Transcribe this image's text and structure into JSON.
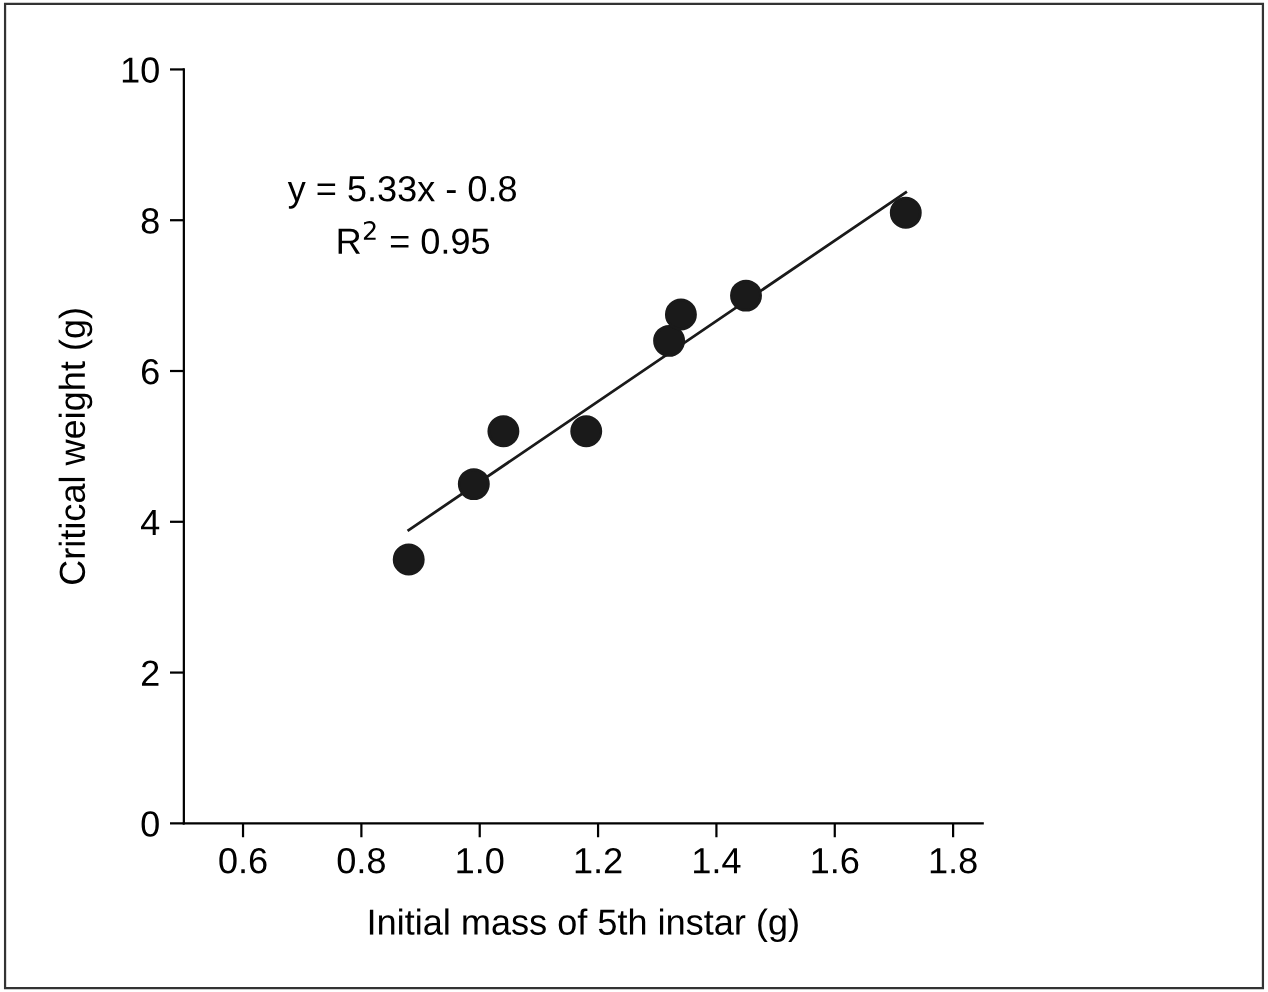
{
  "chart_data": {
    "type": "scatter",
    "xlabel": "Initial mass of 5th instar (g)",
    "ylabel": "Critical weight (g)",
    "annotations": [
      "y = 5.33x - 0.8",
      "R$^{2}$ = 0.95"
    ],
    "marker": "circle",
    "series": [
      {
        "color": "#1a1a1a",
        "x": [
          0.88,
          0.99,
          1.04,
          1.18,
          1.32,
          1.34,
          1.45,
          1.72
        ],
        "values": [
          3.5,
          4.5,
          5.2,
          5.2,
          6.4,
          6.75,
          7.0,
          8.1
        ]
      },
      {
        "type": "line",
        "color": "#1a1a1a",
        "line_style": "solid",
        "marker": "none",
        "x": [
          0.88,
          1.72
        ],
        "values": [
          3.89,
          8.37
        ]
      }
    ],
    "xlim": [
      0.5,
      1.85
    ],
    "xticks": [
      0.6,
      0.8,
      {
        "value": 1.0,
        "label": "1.0"
      },
      1.2,
      1.4,
      1.6,
      1.8
    ],
    "ylim": [
      0,
      10
    ],
    "yticks": [
      0,
      2,
      4,
      6,
      8,
      10
    ],
    "grid": false,
    "legend": false
  }
}
